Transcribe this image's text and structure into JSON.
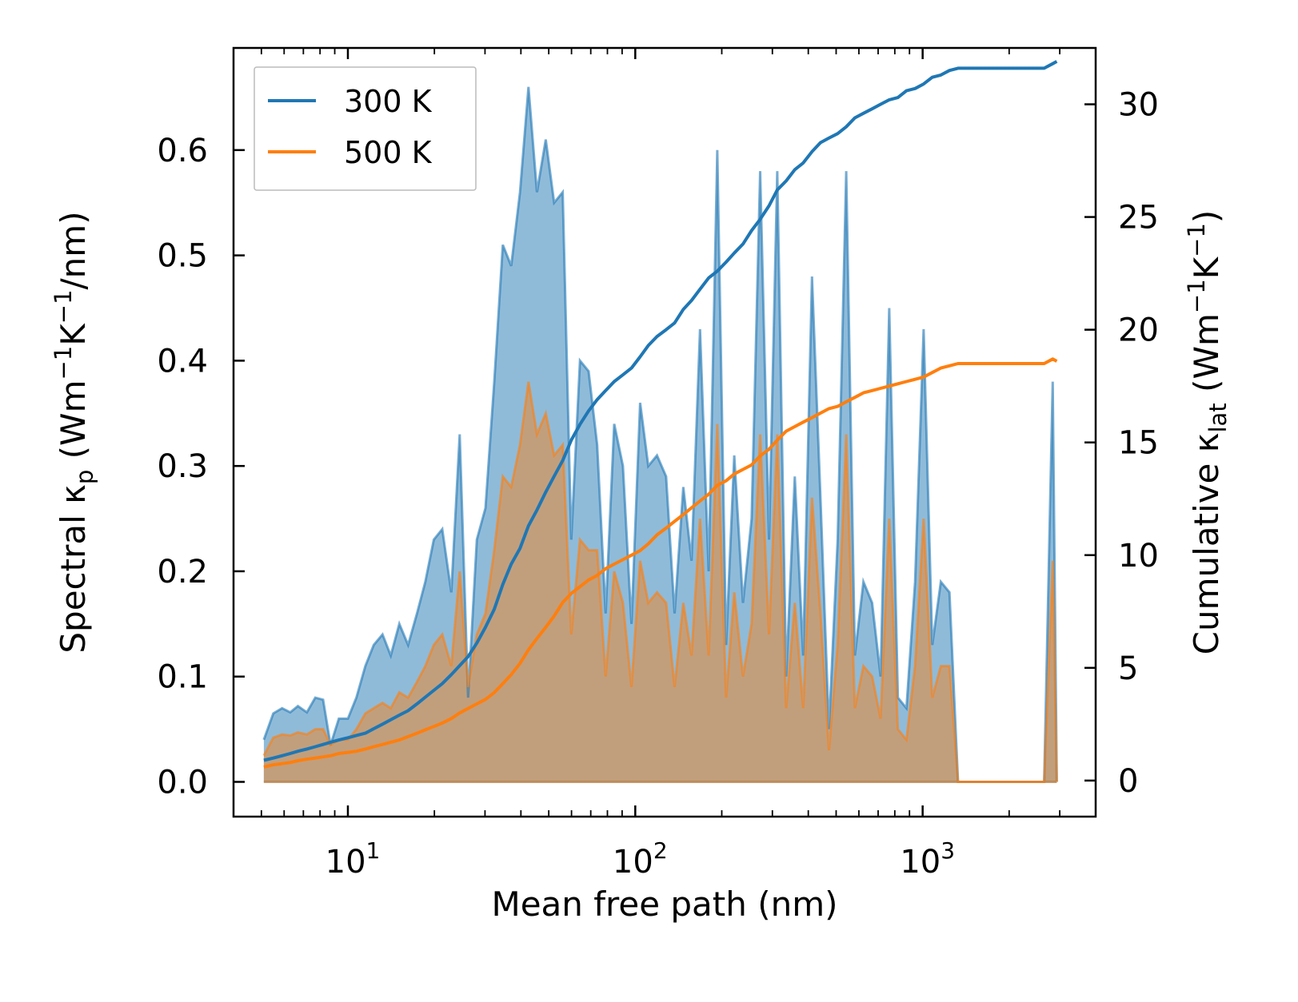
{
  "chart_data": {
    "type": "area",
    "xscale": "log",
    "xlabel": "Mean free path (nm)",
    "ylabel_left": {
      "pre": "Spectral κ",
      "sub": "p",
      "post": " (Wm",
      "sup1": "−1",
      "mid": "K",
      "sup2": "−1",
      "end": "/nm)"
    },
    "ylabel_right": {
      "pre": "Cumulative κ",
      "sub": "lat",
      "post": " (Wm",
      "sup1": "−1",
      "mid": "K",
      "sup2": "−1",
      "end": ")"
    },
    "xlim": [
      4.0,
      4000
    ],
    "ylim_left": [
      -0.033,
      0.697
    ],
    "ylim_right": [
      -1.6,
      32.5
    ],
    "xticks": [
      {
        "value": 10,
        "base": "10",
        "exp": "1"
      },
      {
        "value": 100,
        "base": "10",
        "exp": "2"
      },
      {
        "value": 1000,
        "base": "10",
        "exp": "3"
      }
    ],
    "yticks_left": [
      "0.0",
      "0.1",
      "0.2",
      "0.3",
      "0.4",
      "0.5",
      "0.6"
    ],
    "yticks_left_values": [
      0.0,
      0.1,
      0.2,
      0.3,
      0.4,
      0.5,
      0.6
    ],
    "yticks_right": [
      "0",
      "5",
      "10",
      "15",
      "20",
      "25",
      "30"
    ],
    "yticks_right_values": [
      0,
      5,
      10,
      15,
      20,
      25,
      30
    ],
    "legend": {
      "position": "upper-left",
      "entries": [
        "300 K",
        "500 K"
      ]
    },
    "series": [
      {
        "name": "300 K",
        "color": "#1f77b4",
        "fill_color": "#1f77b4",
        "x": [
          5.1,
          5.5,
          5.9,
          6.3,
          6.7,
          7.2,
          7.7,
          8.2,
          8.7,
          9.3,
          10.0,
          10.7,
          11.5,
          12.3,
          13.2,
          14.1,
          15.1,
          16.2,
          17.4,
          18.6,
          19.9,
          21.3,
          22.9,
          24.5,
          26.2,
          28.1,
          30.1,
          32.3,
          34.6,
          37.0,
          39.7,
          42.5,
          45.5,
          48.8,
          52.2,
          55.9,
          59.9,
          64.2,
          68.8,
          73.7,
          78.9,
          84.5,
          90.6,
          97.0,
          104,
          111,
          119,
          128,
          137,
          147,
          157,
          168,
          180,
          193,
          207,
          221,
          237,
          254,
          272,
          292,
          312,
          335,
          359,
          384,
          412,
          441,
          472,
          506,
          542,
          581,
          622,
          667,
          714,
          765,
          820,
          878,
          941,
          1008,
          1080,
          1157,
          1240,
          1328,
          1423,
          1525,
          1634,
          1750,
          1875,
          2009,
          2152,
          2306,
          2471,
          2647,
          2836,
          2930
        ],
        "spectral": [
          0.04,
          0.065,
          0.07,
          0.066,
          0.072,
          0.066,
          0.08,
          0.078,
          0.035,
          0.06,
          0.06,
          0.08,
          0.11,
          0.13,
          0.14,
          0.12,
          0.15,
          0.13,
          0.16,
          0.19,
          0.23,
          0.24,
          0.18,
          0.33,
          0.08,
          0.23,
          0.26,
          0.38,
          0.51,
          0.49,
          0.56,
          0.66,
          0.56,
          0.61,
          0.55,
          0.56,
          0.23,
          0.4,
          0.39,
          0.32,
          0.16,
          0.34,
          0.3,
          0.15,
          0.36,
          0.3,
          0.31,
          0.29,
          0.16,
          0.28,
          0.21,
          0.43,
          0.2,
          0.6,
          0.13,
          0.31,
          0.17,
          0.25,
          0.58,
          0.23,
          0.58,
          0.1,
          0.29,
          0.12,
          0.48,
          0.27,
          0.05,
          0.23,
          0.58,
          0.12,
          0.19,
          0.17,
          0.1,
          0.45,
          0.08,
          0.07,
          0.19,
          0.43,
          0.13,
          0.19,
          0.18,
          0.0,
          0.0,
          0.0,
          0.0,
          0.0,
          0.0,
          0.0,
          0.0,
          0.0,
          0.0,
          0.0,
          0.38,
          0.0
        ],
        "cumulative": [
          0.9,
          1.0,
          1.1,
          1.2,
          1.3,
          1.4,
          1.5,
          1.6,
          1.7,
          1.8,
          1.9,
          2.0,
          2.1,
          2.3,
          2.5,
          2.7,
          2.9,
          3.1,
          3.4,
          3.7,
          4.0,
          4.3,
          4.7,
          5.1,
          5.5,
          6.1,
          6.8,
          7.6,
          8.7,
          9.6,
          10.3,
          11.3,
          12.0,
          12.8,
          13.5,
          14.2,
          15.1,
          15.8,
          16.4,
          16.9,
          17.3,
          17.7,
          18.0,
          18.3,
          18.8,
          19.3,
          19.7,
          20.0,
          20.3,
          20.9,
          21.3,
          21.8,
          22.3,
          22.6,
          23.0,
          23.4,
          23.8,
          24.4,
          24.9,
          25.5,
          26.2,
          26.6,
          27.1,
          27.4,
          27.9,
          28.3,
          28.5,
          28.7,
          29.0,
          29.4,
          29.6,
          29.8,
          30.0,
          30.2,
          30.3,
          30.6,
          30.7,
          30.9,
          31.2,
          31.3,
          31.5,
          31.6,
          31.6,
          31.6,
          31.6,
          31.6,
          31.6,
          31.6,
          31.6,
          31.6,
          31.6,
          31.6,
          31.8,
          31.9
        ]
      },
      {
        "name": "500 K",
        "color": "#ff7f0e",
        "fill_color": "#d2955d",
        "x": [
          5.1,
          5.5,
          5.9,
          6.3,
          6.7,
          7.2,
          7.7,
          8.2,
          8.7,
          9.3,
          10.0,
          10.7,
          11.5,
          12.3,
          13.2,
          14.1,
          15.1,
          16.2,
          17.4,
          18.6,
          19.9,
          21.3,
          22.9,
          24.5,
          26.2,
          28.1,
          30.1,
          32.3,
          34.6,
          37.0,
          39.7,
          42.5,
          45.5,
          48.8,
          52.2,
          55.9,
          59.9,
          64.2,
          68.8,
          73.7,
          78.9,
          84.5,
          90.6,
          97.0,
          104,
          111,
          119,
          128,
          137,
          147,
          157,
          168,
          180,
          193,
          207,
          221,
          237,
          254,
          272,
          292,
          312,
          335,
          359,
          384,
          412,
          441,
          472,
          506,
          542,
          581,
          622,
          667,
          714,
          765,
          820,
          878,
          941,
          1008,
          1080,
          1157,
          1240,
          1328,
          1423,
          1525,
          1634,
          1750,
          1875,
          2009,
          2152,
          2306,
          2471,
          2647,
          2836,
          2930
        ],
        "spectral": [
          0.025,
          0.042,
          0.045,
          0.044,
          0.047,
          0.045,
          0.05,
          0.05,
          0.035,
          0.04,
          0.04,
          0.05,
          0.065,
          0.07,
          0.075,
          0.07,
          0.085,
          0.08,
          0.095,
          0.11,
          0.13,
          0.14,
          0.11,
          0.2,
          0.09,
          0.14,
          0.16,
          0.22,
          0.29,
          0.28,
          0.32,
          0.38,
          0.33,
          0.35,
          0.31,
          0.32,
          0.14,
          0.23,
          0.22,
          0.22,
          0.1,
          0.2,
          0.17,
          0.09,
          0.21,
          0.17,
          0.18,
          0.17,
          0.09,
          0.17,
          0.12,
          0.25,
          0.12,
          0.34,
          0.08,
          0.18,
          0.1,
          0.15,
          0.33,
          0.14,
          0.33,
          0.07,
          0.17,
          0.07,
          0.27,
          0.16,
          0.03,
          0.13,
          0.33,
          0.07,
          0.11,
          0.1,
          0.06,
          0.25,
          0.05,
          0.04,
          0.11,
          0.25,
          0.08,
          0.11,
          0.11,
          0.0,
          0.0,
          0.0,
          0.0,
          0.0,
          0.0,
          0.0,
          0.0,
          0.0,
          0.0,
          0.0,
          0.21,
          0.0
        ],
        "cumulative": [
          0.6,
          0.7,
          0.75,
          0.8,
          0.88,
          0.95,
          1.0,
          1.05,
          1.1,
          1.2,
          1.25,
          1.3,
          1.4,
          1.5,
          1.6,
          1.7,
          1.8,
          1.95,
          2.1,
          2.25,
          2.4,
          2.55,
          2.75,
          3.0,
          3.2,
          3.4,
          3.6,
          3.9,
          4.3,
          4.7,
          5.2,
          5.8,
          6.3,
          6.8,
          7.3,
          7.9,
          8.3,
          8.6,
          8.9,
          9.1,
          9.4,
          9.6,
          9.8,
          10.0,
          10.2,
          10.5,
          10.9,
          11.2,
          11.5,
          11.8,
          12.1,
          12.4,
          12.7,
          13.1,
          13.3,
          13.6,
          13.8,
          14.0,
          14.4,
          14.7,
          15.1,
          15.5,
          15.7,
          15.9,
          16.1,
          16.3,
          16.5,
          16.6,
          16.8,
          17.0,
          17.2,
          17.3,
          17.4,
          17.5,
          17.6,
          17.7,
          17.8,
          17.9,
          18.1,
          18.3,
          18.4,
          18.5,
          18.5,
          18.5,
          18.5,
          18.5,
          18.5,
          18.5,
          18.5,
          18.5,
          18.5,
          18.5,
          18.7,
          18.6
        ]
      }
    ]
  }
}
